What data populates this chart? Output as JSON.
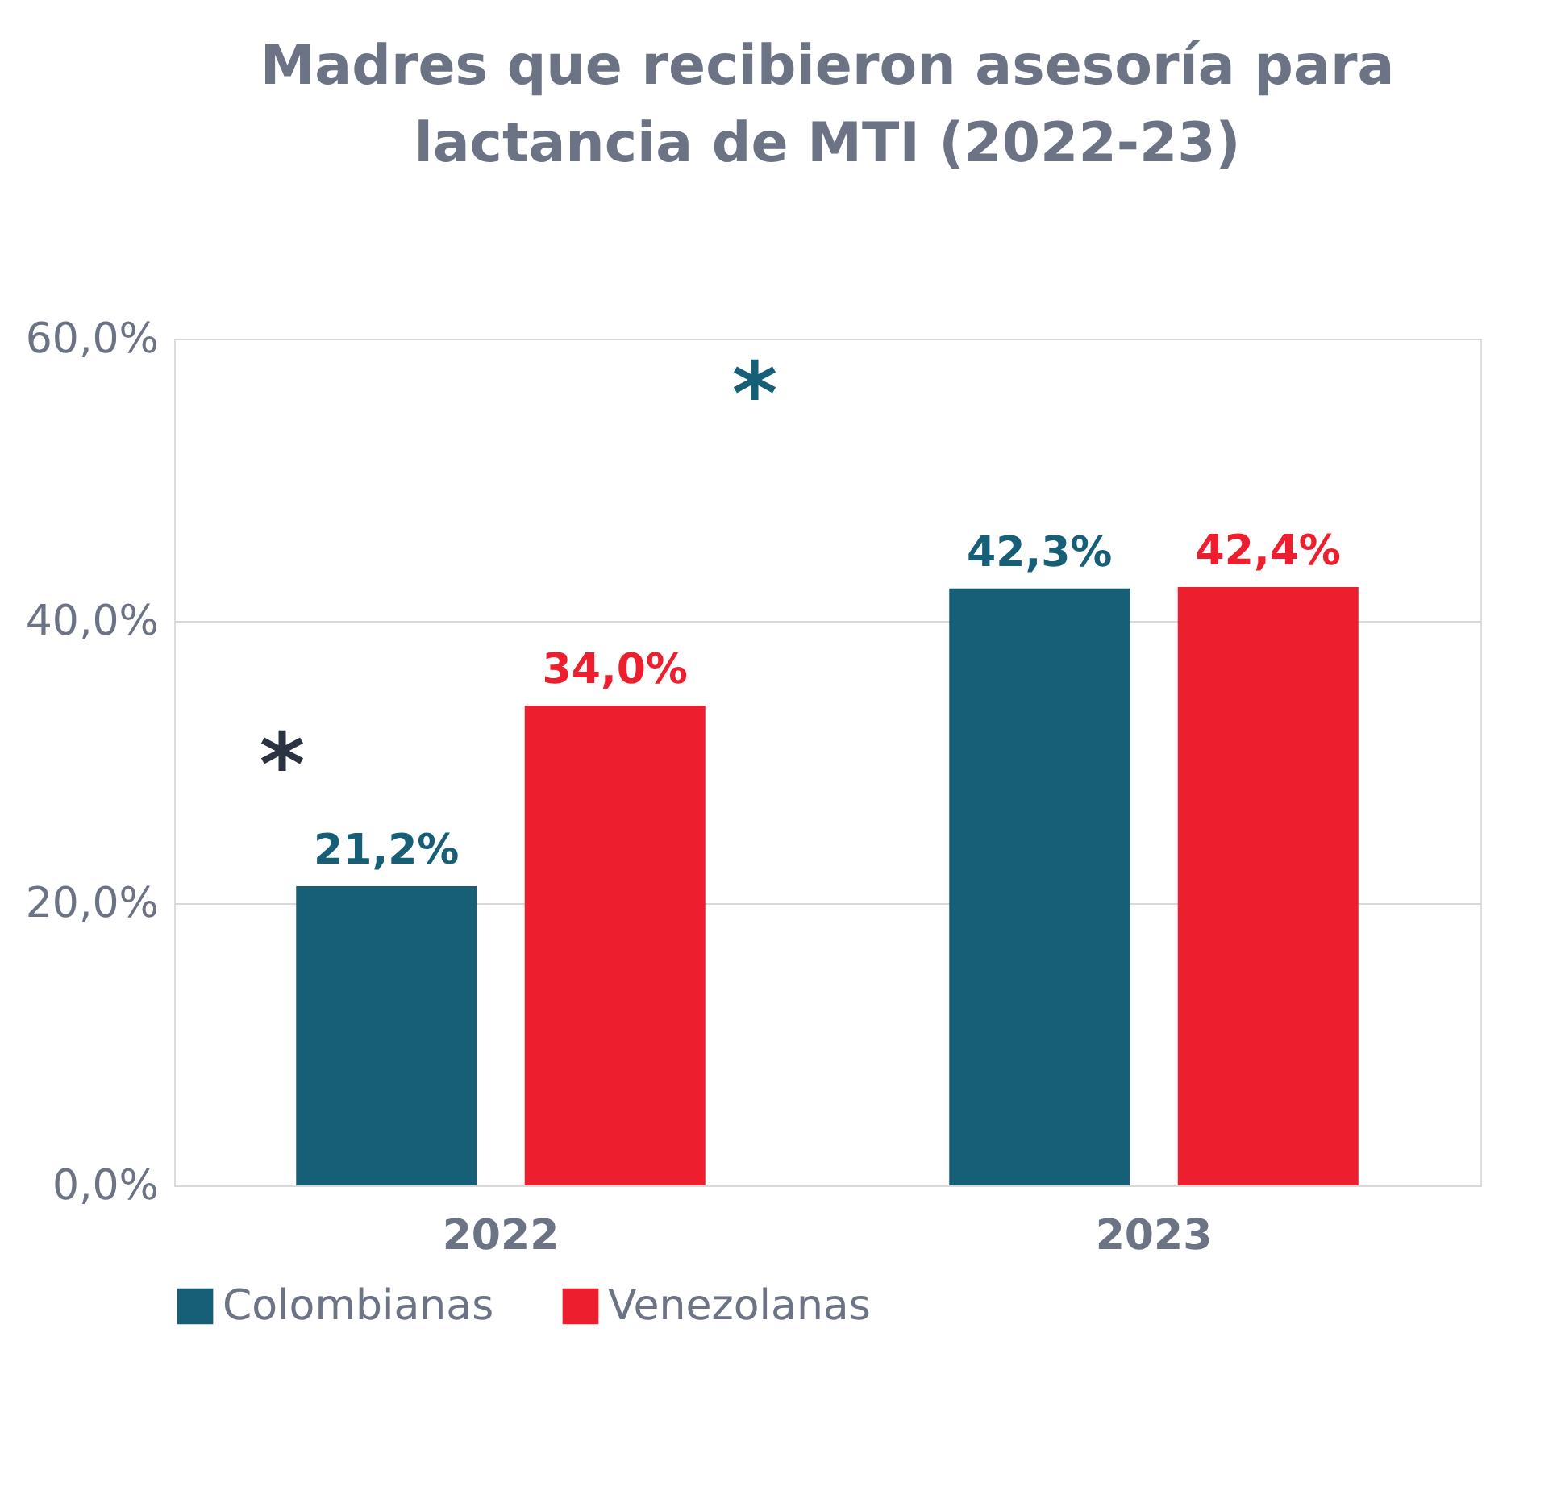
{
  "chart_data": {
    "type": "bar",
    "title": [
      "Madres que recibieron asesoría para",
      "lactancia de MTI (2022-23)"
    ],
    "categories": [
      "2022",
      "2023"
    ],
    "series": [
      {
        "name": "Colombianas",
        "color": "#175e77",
        "values": [
          21.2,
          42.3
        ],
        "value_labels": [
          "21,2%",
          "42,3%"
        ]
      },
      {
        "name": "Venezolanas",
        "color": "#ed1f2e",
        "values": [
          34.0,
          42.4
        ],
        "value_labels": [
          "34,0%",
          "42,4%"
        ]
      }
    ],
    "ylim": [
      0,
      60
    ],
    "yticks": [
      {
        "value": 0,
        "label": "0,0%"
      },
      {
        "value": 20,
        "label": "20,0%"
      },
      {
        "value": 40,
        "label": "40,0%"
      },
      {
        "value": 60,
        "label": "60,0%"
      }
    ],
    "grid": "y",
    "legend": "bottom",
    "annotations": [
      "*",
      "*"
    ]
  }
}
